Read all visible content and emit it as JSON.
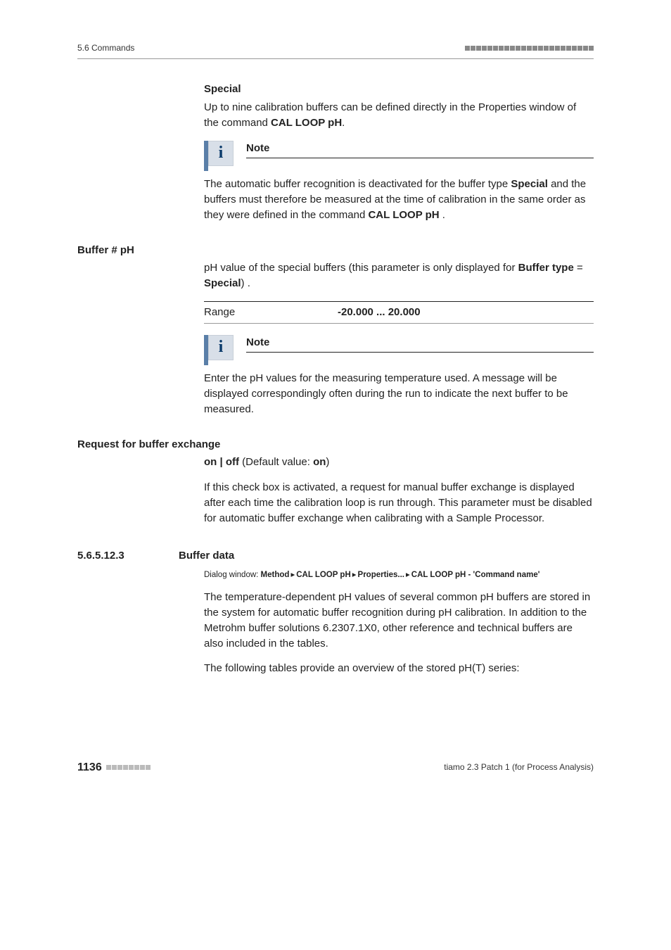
{
  "header": {
    "left": "5.6 Commands"
  },
  "special": {
    "title": "Special",
    "body_pre": "Up to nine calibration buffers can be defined directly in the Properties window of the command ",
    "bold_cmd": "CAL LOOP pH",
    "body_post": "."
  },
  "note1": {
    "title": "Note",
    "body_pre": "The automatic buffer recognition is deactivated for the buffer type ",
    "bold1": "Spe­cial",
    "body_mid": " and the buffers must therefore be measured at the time of calibra­tion in the same order as they were defined in the command ",
    "bold2": "CAL LOOP pH",
    "body_post": " ."
  },
  "buffer": {
    "title": "Buffer # pH",
    "body_pre": "pH value of the special buffers (this parameter is only displayed for ",
    "bold1": "Buffer type",
    "body_mid": " = ",
    "bold2": "Special",
    "body_post": ") .",
    "range_label": "Range",
    "range_value": "-20.000 ... 20.000"
  },
  "note2": {
    "title": "Note",
    "body": "Enter the pH values for the measuring temperature used. A message will be displayed correspondingly often during the run to indicate the next buffer to be measured."
  },
  "request": {
    "title": "Request for buffer exchange",
    "onoff_pre": "on | off",
    "onoff_mid": " (Default value: ",
    "onoff_bold": "on",
    "onoff_post": ")",
    "body": "If this check box is activated, a request for manual buffer exchange is dis­played after each time the calibration loop is run through. This parameter must be disabled for automatic buffer exchange when calibrating with a Sample Processor."
  },
  "bufferdata": {
    "num": "5.6.5.12.3",
    "title": "Buffer data",
    "path_pre": "Dialog window: ",
    "path1": "Method",
    "path2": "CAL LOOP pH",
    "path3": "Properties...",
    "path4": "CAL LOOP pH - 'Com­mand name'",
    "sep": "▸",
    "body1": "The temperature-dependent pH values of several common pH buffers are stored in the system for automatic buffer recognition during pH calibra­tion. In addition to the Metrohm buffer solutions 6.2307.1X0, other refer­ence and technical buffers are also included in the tables.",
    "body2": "The following tables provide an overview of the stored pH(T) series:"
  },
  "footer": {
    "page": "1136",
    "right": "tiamo 2.3 Patch 1 (for Process Analysis)"
  }
}
